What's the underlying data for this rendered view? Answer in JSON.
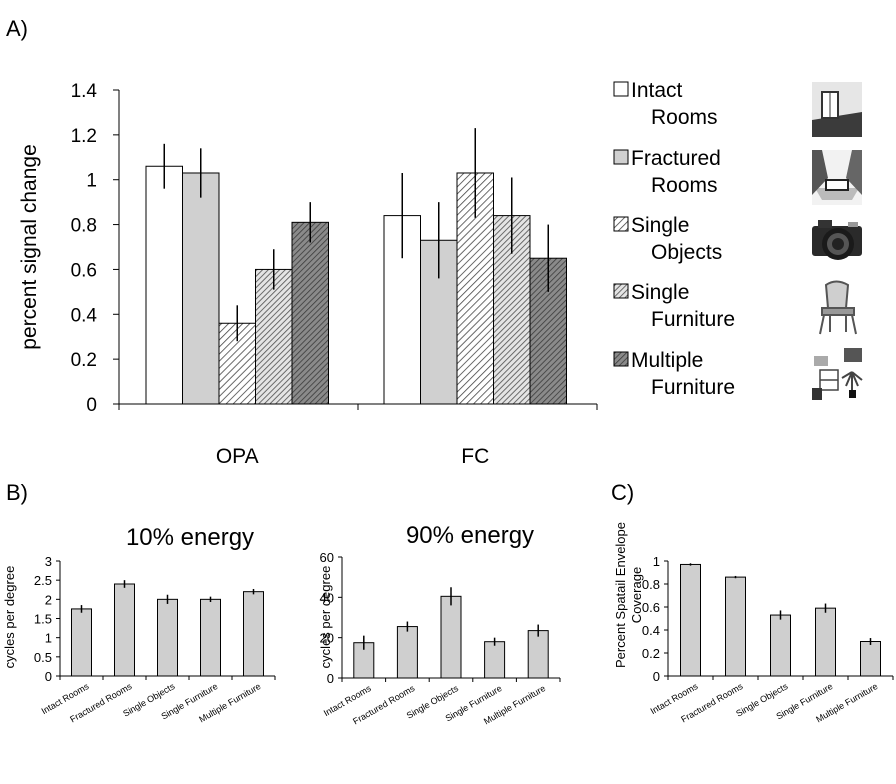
{
  "panel_labels": {
    "a": "A)",
    "b": "B)",
    "c": "C)"
  },
  "legend": [
    {
      "line1": "Intact",
      "line2": "Rooms",
      "image": "room-photo-icon"
    },
    {
      "line1": "Fractured",
      "line2": "Rooms",
      "image": "fractured-room-photo-icon"
    },
    {
      "line1": "Single",
      "line2": "Objects",
      "image": "camera-photo-icon"
    },
    {
      "line1": "Single",
      "line2": "Furniture",
      "image": "chair-photo-icon"
    },
    {
      "line1": "Multiple",
      "line2": "Furniture",
      "image": "furniture-collage-icon"
    }
  ],
  "colors": {
    "intact": "#ffffff",
    "fractured": "#d0d0d0",
    "single_objects": "hatch-light",
    "single_furniture": "hatch-medium",
    "multiple_furniture": "hatch-dark",
    "small_bars": "#cfcfcf"
  },
  "chart_data": [
    {
      "id": "A",
      "type": "bar",
      "title": "",
      "xlabel": "",
      "ylabel": "percent signal change",
      "ylim": [
        0,
        1.4
      ],
      "yticks": [
        "0",
        "0.2",
        "0.4",
        "0.6",
        "0.8",
        "1",
        "1.2",
        "1.4"
      ],
      "categories": [
        "OPA",
        "FC"
      ],
      "series": [
        {
          "name": "Intact Rooms",
          "values": [
            1.06,
            0.84
          ],
          "errors": [
            0.1,
            0.19
          ]
        },
        {
          "name": "Fractured Rooms",
          "values": [
            1.03,
            0.73
          ],
          "errors": [
            0.11,
            0.17
          ]
        },
        {
          "name": "Single Objects",
          "values": [
            0.36,
            1.03
          ],
          "errors": [
            0.08,
            0.2
          ]
        },
        {
          "name": "Single Furniture",
          "values": [
            0.6,
            0.84
          ],
          "errors": [
            0.09,
            0.17
          ]
        },
        {
          "name": "Multiple Furniture",
          "values": [
            0.81,
            0.65
          ],
          "errors": [
            0.09,
            0.15
          ]
        }
      ],
      "legend": "right"
    },
    {
      "id": "B1",
      "type": "bar",
      "title": "10% energy",
      "xlabel": "",
      "ylabel": "cycles per degree",
      "ylim": [
        0,
        3
      ],
      "yticks": [
        "0",
        "0.5",
        "1",
        "1.5",
        "2",
        "2.5",
        "3"
      ],
      "categories": [
        "Intact Rooms",
        "Fractured Rooms",
        "Single Objects",
        "Single Furniture",
        "Multiple Furniture"
      ],
      "values": [
        1.75,
        2.4,
        2.0,
        2.0,
        2.2
      ],
      "errors": [
        0.1,
        0.1,
        0.12,
        0.07,
        0.07
      ]
    },
    {
      "id": "B2",
      "type": "bar",
      "title": "90% energy",
      "xlabel": "",
      "ylabel": "cycles per degree",
      "ylim": [
        0,
        60
      ],
      "yticks": [
        "0",
        "20",
        "40",
        "60"
      ],
      "categories": [
        "Intact Rooms",
        "Fractured Rooms",
        "Single Objects",
        "Single Furniture",
        "Multiple Furniture"
      ],
      "values": [
        17.5,
        25.5,
        40.5,
        18.0,
        23.5
      ],
      "errors": [
        3.5,
        2.5,
        4.5,
        2.0,
        3.0
      ]
    },
    {
      "id": "C",
      "type": "bar",
      "title": "",
      "xlabel": "",
      "ylabel": "Percent Spatail Envelope Coverage",
      "ylabel_lines": [
        "Percent Spatail Envelope",
        "Coverage"
      ],
      "ylim": [
        0,
        1
      ],
      "yticks": [
        "0",
        "0.2",
        "0.4",
        "0.6",
        "0.8",
        "1"
      ],
      "categories": [
        "Intact Rooms",
        "Fractured Rooms",
        "Single Objects",
        "Single Furniture",
        "Multiple Furniture"
      ],
      "values": [
        0.97,
        0.86,
        0.53,
        0.59,
        0.3
      ],
      "errors": [
        0.01,
        0.01,
        0.04,
        0.04,
        0.03
      ]
    }
  ]
}
